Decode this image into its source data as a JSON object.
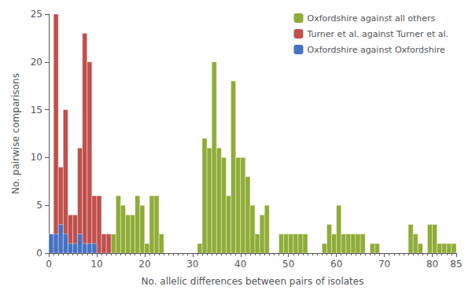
{
  "chart_data": {
    "type": "bar",
    "xlabel": "No. allelic differences between pairs of isolates",
    "ylabel": "No. pairwise comparisons",
    "xlim": [
      0,
      85
    ],
    "ylim": [
      0,
      25
    ],
    "xticks": [
      0,
      10,
      20,
      30,
      40,
      50,
      60,
      70,
      80
    ],
    "yticks": [
      0,
      5,
      10,
      15,
      20,
      25
    ],
    "grid": false,
    "legend": "upper right",
    "series": [
      {
        "name": "Oxfordshire against all others",
        "color": "#8fac38",
        "x": [
          13,
          14,
          15,
          16,
          17,
          18,
          19,
          20,
          21,
          22,
          23,
          31,
          32,
          33,
          34,
          35,
          36,
          37,
          38,
          39,
          40,
          41,
          42,
          43,
          44,
          45,
          48,
          49,
          50,
          51,
          52,
          53,
          57,
          58,
          59,
          60,
          61,
          62,
          63,
          64,
          65,
          67,
          68,
          75,
          76,
          77,
          79,
          80,
          81,
          82,
          83,
          84
        ],
        "values": [
          2,
          6,
          5,
          4,
          4,
          6,
          5,
          1,
          6,
          6,
          2,
          1,
          12,
          11,
          20,
          11,
          10,
          6,
          18,
          10,
          10,
          8,
          5,
          2,
          4,
          5,
          2,
          2,
          2,
          2,
          2,
          2,
          1,
          3,
          2,
          5,
          2,
          2,
          2,
          2,
          2,
          1,
          1,
          3,
          2,
          1,
          3,
          3,
          1,
          1,
          1,
          1
        ]
      },
      {
        "name": "Turner et al. against Turner et al.",
        "color": "#c0504d",
        "x": [
          1,
          2,
          3,
          4,
          5,
          6,
          7,
          8,
          9,
          10,
          11,
          12
        ],
        "values": [
          25,
          9,
          15,
          4,
          4,
          11,
          23,
          20,
          6,
          6,
          2,
          2
        ]
      },
      {
        "name": "Oxfordshire against Oxfordshire",
        "color": "#4472c4",
        "x": [
          0,
          1,
          2,
          3,
          4,
          5,
          6,
          7,
          8,
          9
        ],
        "values": [
          2,
          2,
          3,
          2,
          1,
          1,
          2,
          1,
          1,
          1
        ]
      }
    ]
  }
}
